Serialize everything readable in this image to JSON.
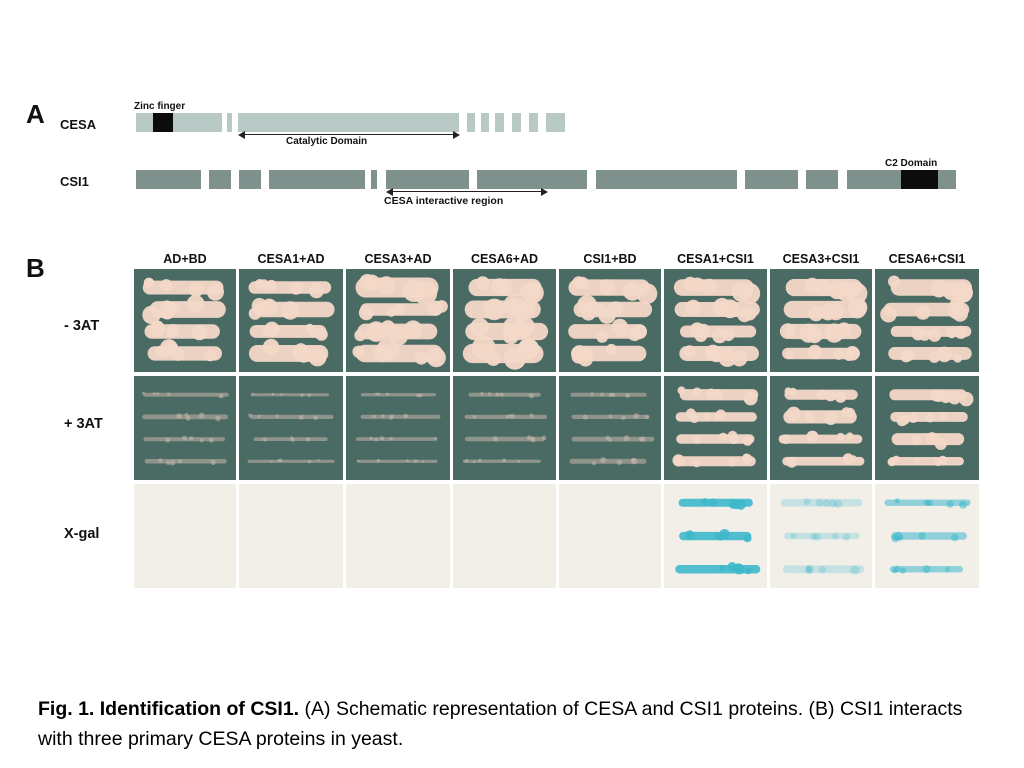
{
  "panel_a": {
    "letter": "A",
    "cesa_label": "CESA",
    "zinc_label": "Zinc finger",
    "catalytic_label": "Catalytic Domain",
    "csi1_label": "CSI1",
    "c2_label": "C2 Domain",
    "interactive_label": "CESA interactive region"
  },
  "panel_b": {
    "letter": "B",
    "columns": [
      "AD+BD",
      "CESA1+AD",
      "CESA3+AD",
      "CESA6+AD",
      "CSI1+BD",
      "CESA1+CSI1",
      "CESA3+CSI1",
      "CESA6+CSI1"
    ],
    "rows": [
      "- 3AT",
      "+ 3AT",
      "X-gal"
    ],
    "colors": {
      "plate_green": "#4a6a64",
      "plate_cream": "#f2efe9",
      "colony": "#f3d8c8",
      "xgal_blue": "#3fb8cc"
    }
  },
  "caption": {
    "bold": "Fig. 1. Identification of CSI1.",
    "text": " (A) Schematic representation of CESA and CSI1 proteins. (B) CSI1 interacts with three primary CESA proteins in yeast."
  }
}
